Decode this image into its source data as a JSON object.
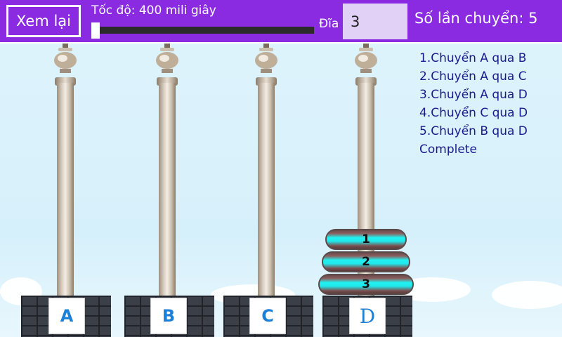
{
  "toolbar": {
    "replay_label": "Xem lại",
    "speed_label": "Tốc độ: 400 mili giây",
    "speed_fraction": 0.0,
    "disc_label": "Đĩa",
    "disc_value": "3",
    "moves_label": "Số lần chuyển: 5"
  },
  "pegs": [
    {
      "label": "A"
    },
    {
      "label": "B"
    },
    {
      "label": "C"
    },
    {
      "label": "D"
    }
  ],
  "discs": [
    {
      "label": "1",
      "peg": "D"
    },
    {
      "label": "2",
      "peg": "D"
    },
    {
      "label": "3",
      "peg": "D"
    }
  ],
  "log": [
    "1.Chuyển A qua B",
    "2.Chuyển A qua C",
    "3.Chuyển A qua D",
    "4.Chuyển C qua D",
    "5.Chuyển B qua D",
    "Complete"
  ],
  "colors": {
    "toolbar": "#8a2be2",
    "disc_glow": "#20f0f0",
    "log_text": "#1a1a8c",
    "badge_text": "#1e7fd6"
  }
}
